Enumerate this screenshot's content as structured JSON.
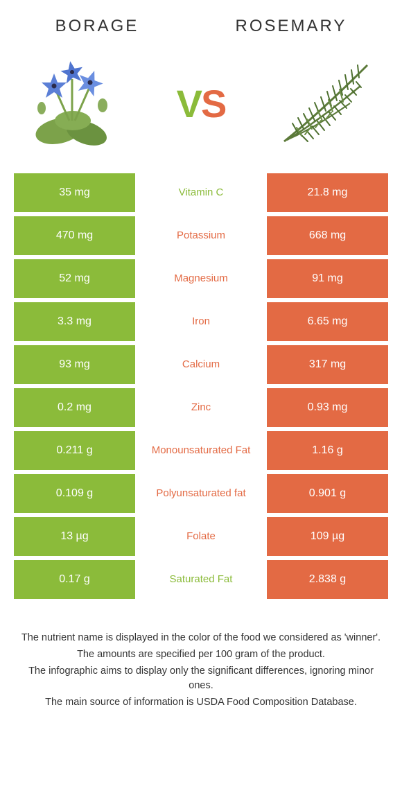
{
  "header": {
    "left_title": "BORAGE",
    "right_title": "ROSEMARY",
    "vs_v": "V",
    "vs_s": "S"
  },
  "colors": {
    "left": "#8bbb3a",
    "right": "#e36a44",
    "background": "#ffffff",
    "text": "#333333"
  },
  "table": {
    "rows": [
      {
        "left": "35 mg",
        "label": "Vitamin C",
        "right": "21.8 mg",
        "winner": "left"
      },
      {
        "left": "470 mg",
        "label": "Potassium",
        "right": "668 mg",
        "winner": "right"
      },
      {
        "left": "52 mg",
        "label": "Magnesium",
        "right": "91 mg",
        "winner": "right"
      },
      {
        "left": "3.3 mg",
        "label": "Iron",
        "right": "6.65 mg",
        "winner": "right"
      },
      {
        "left": "93 mg",
        "label": "Calcium",
        "right": "317 mg",
        "winner": "right"
      },
      {
        "left": "0.2 mg",
        "label": "Zinc",
        "right": "0.93 mg",
        "winner": "right"
      },
      {
        "left": "0.211 g",
        "label": "Monounsaturated Fat",
        "right": "1.16 g",
        "winner": "right"
      },
      {
        "left": "0.109 g",
        "label": "Polyunsaturated fat",
        "right": "0.901 g",
        "winner": "right"
      },
      {
        "left": "13 µg",
        "label": "Folate",
        "right": "109 µg",
        "winner": "right"
      },
      {
        "left": "0.17 g",
        "label": "Saturated Fat",
        "right": "2.838 g",
        "winner": "left"
      }
    ]
  },
  "footer": {
    "line1": "The nutrient name is displayed in the color of the food we considered as 'winner'.",
    "line2": "The amounts are specified per 100 gram of the product.",
    "line3": "The infographic aims to display only the significant differences, ignoring minor ones.",
    "line4": "The main source of information is USDA Food Composition Database."
  }
}
